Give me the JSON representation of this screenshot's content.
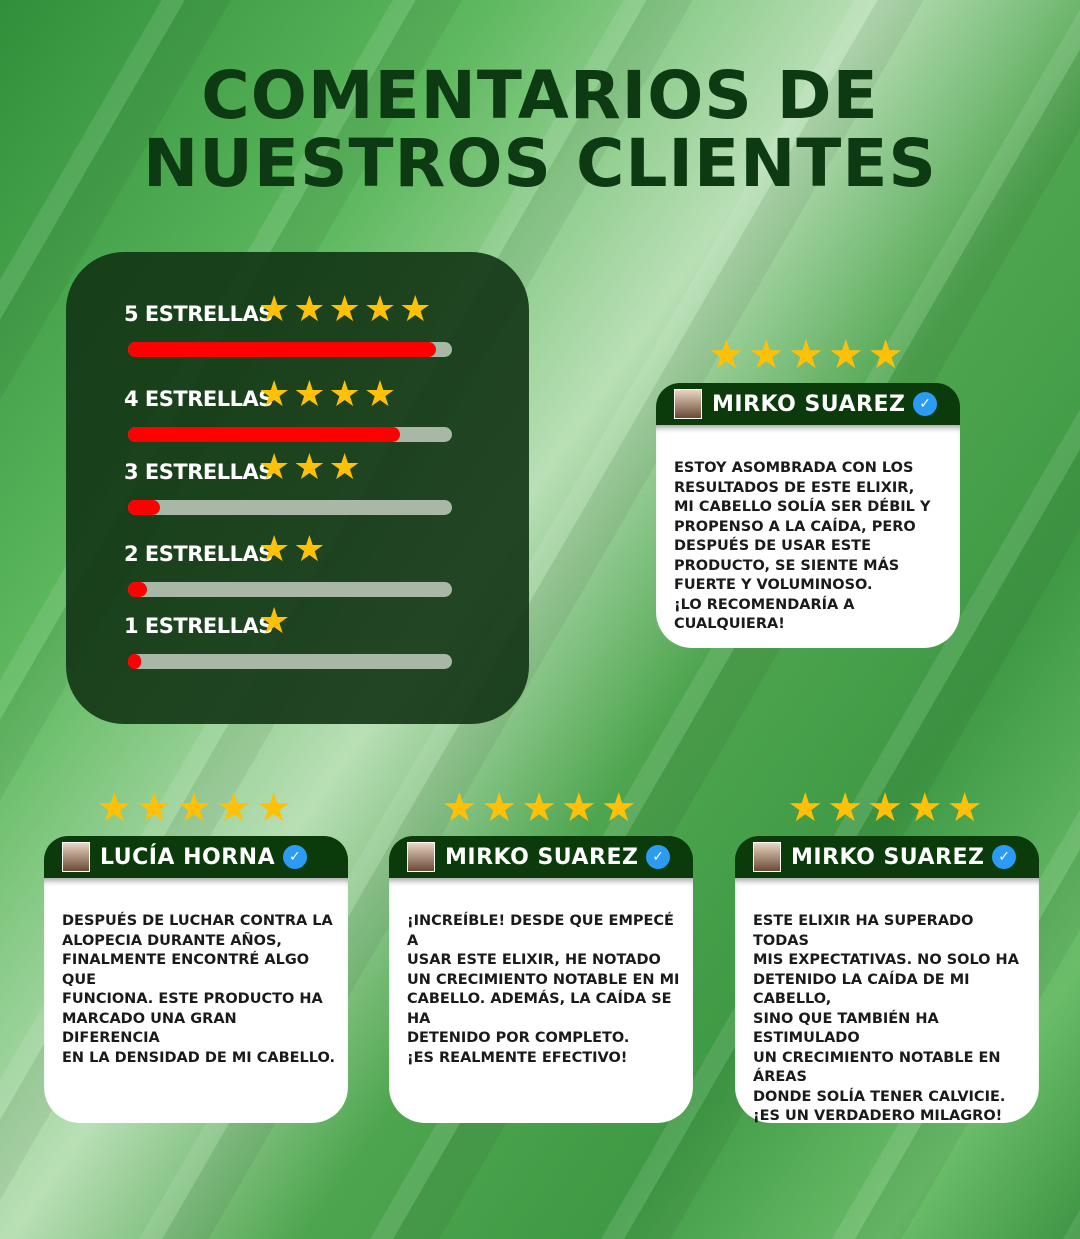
{
  "title": {
    "line1": "COMENTARIOS DE",
    "line2": "NUESTROS CLIENTES"
  },
  "colors": {
    "star": "#ffc107",
    "bar_fill": "#ff0000",
    "header": "#0b3a0b",
    "verified": "#2b9bf4"
  },
  "ratings": [
    {
      "label": "5 ESTRELLAS",
      "stars": "★★★★★",
      "percent": 95
    },
    {
      "label": "4 ESTRELLAS",
      "stars": "★★★★",
      "percent": 84
    },
    {
      "label": "3 ESTRELLAS",
      "stars": "★★★",
      "percent": 10
    },
    {
      "label": "2 ESTRELLAS",
      "stars": "★★",
      "percent": 6
    },
    {
      "label": "1 ESTRELLAS",
      "stars": "★",
      "percent": 4
    }
  ],
  "reviews": [
    {
      "name": "MIRKO SUAREZ",
      "stars": "★★★★★",
      "verified_icon": "✓",
      "text": "ESTOY ASOMBRADA CON LOS\nRESULTADOS DE ESTE ELIXIR,\nMI CABELLO SOLÍA SER DÉBIL Y\nPROPENSO A LA CAÍDA, PERO\nDESPUÉS DE USAR ESTE\nPRODUCTO, SE SIENTE MÁS\nFUERTE Y VOLUMINOSO.\n¡LO RECOMENDARÍA A CUALQUIERA!"
    },
    {
      "name": "LUCÍA HORNA",
      "stars": "★★★★★",
      "verified_icon": "✓",
      "text": "DESPUÉS DE LUCHAR CONTRA LA\nALOPECIA DURANTE AÑOS,\nFINALMENTE ENCONTRÉ ALGO QUE\nFUNCIONA. ESTE PRODUCTO HA\nMARCADO UNA GRAN DIFERENCIA\nEN LA DENSIDAD DE MI CABELLO."
    },
    {
      "name": "MIRKO SUAREZ",
      "stars": "★★★★★",
      "verified_icon": "✓",
      "text": "¡INCREÍBLE! DESDE QUE EMPECÉ A\nUSAR ESTE ELIXIR, HE NOTADO\nUN CRECIMIENTO NOTABLE EN MI\nCABELLO. ADEMÁS, LA CAÍDA SE HA\nDETENIDO POR COMPLETO.\n ¡ES REALMENTE EFECTIVO!"
    },
    {
      "name": "MIRKO SUAREZ",
      "stars": "★★★★★",
      "verified_icon": "✓",
      "text": "ESTE ELIXIR HA SUPERADO TODAS\nMIS EXPECTATIVAS. NO SOLO HA\nDETENIDO LA CAÍDA DE MI CABELLO,\nSINO QUE TAMBIÉN HA ESTIMULADO\nUN CRECIMIENTO NOTABLE EN ÁREAS\nDONDE SOLÍA TENER CALVICIE.\n¡ES UN VERDADERO MILAGRO!"
    }
  ]
}
